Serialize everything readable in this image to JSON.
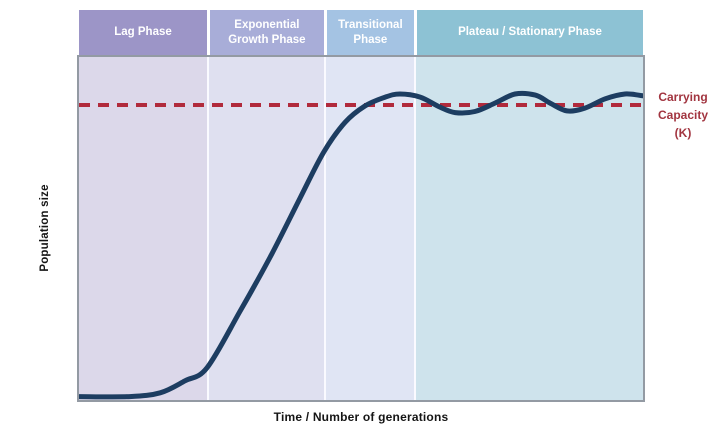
{
  "chart_data": {
    "type": "line",
    "title": "",
    "xlabel": "Time / Number of generations",
    "ylabel": "Population size",
    "grid": false,
    "legend": "none",
    "axes_numeric_ticks": "none (conceptual diagram, no tick labels shown)",
    "phases": [
      {
        "label": "Lag Phase",
        "band_color": "#9c95c7",
        "area_color": "#dcd8ea",
        "x_start": 0.0,
        "x_end": 0.227
      },
      {
        "label": "Exponential Growth Phase",
        "band_color": "#a8add8",
        "area_color": "#dfe0f0",
        "x_start": 0.227,
        "x_end": 0.434
      },
      {
        "label": "Transitional Phase",
        "band_color": "#a4c3e3",
        "area_color": "#e0e5f4",
        "x_start": 0.434,
        "x_end": 0.594
      },
      {
        "label": "Plateau / Stationary Phase",
        "band_color": "#8dc2d4",
        "area_color": "#cee3ec",
        "x_start": 0.594,
        "x_end": 1.0
      }
    ],
    "carrying_capacity": {
      "label": "Carrying Capacity (K)",
      "label_lines": [
        "Carrying",
        "Capacity",
        "(K)"
      ],
      "level": 0.86,
      "line_color": "#b12a3c",
      "line_style": "dashed",
      "text_color": "#a23540"
    },
    "series": [
      {
        "name": "Population size over time (logistic growth with oscillation about K)",
        "color": "#1d3d61",
        "points": [
          [
            0.0,
            0.01
          ],
          [
            0.09,
            0.01
          ],
          [
            0.144,
            0.021
          ],
          [
            0.188,
            0.056
          ],
          [
            0.227,
            0.094
          ],
          [
            0.285,
            0.257
          ],
          [
            0.339,
            0.417
          ],
          [
            0.392,
            0.589
          ],
          [
            0.434,
            0.723
          ],
          [
            0.472,
            0.81
          ],
          [
            0.507,
            0.857
          ],
          [
            0.543,
            0.883
          ],
          [
            0.569,
            0.892
          ],
          [
            0.605,
            0.883
          ],
          [
            0.64,
            0.854
          ],
          [
            0.667,
            0.838
          ],
          [
            0.702,
            0.841
          ],
          [
            0.738,
            0.866
          ],
          [
            0.773,
            0.892
          ],
          [
            0.809,
            0.889
          ],
          [
            0.835,
            0.866
          ],
          [
            0.865,
            0.843
          ],
          [
            0.897,
            0.851
          ],
          [
            0.933,
            0.878
          ],
          [
            0.968,
            0.892
          ],
          [
            1.0,
            0.887
          ]
        ]
      }
    ],
    "xlim": [
      0,
      1
    ],
    "ylim": [
      0,
      1
    ]
  }
}
